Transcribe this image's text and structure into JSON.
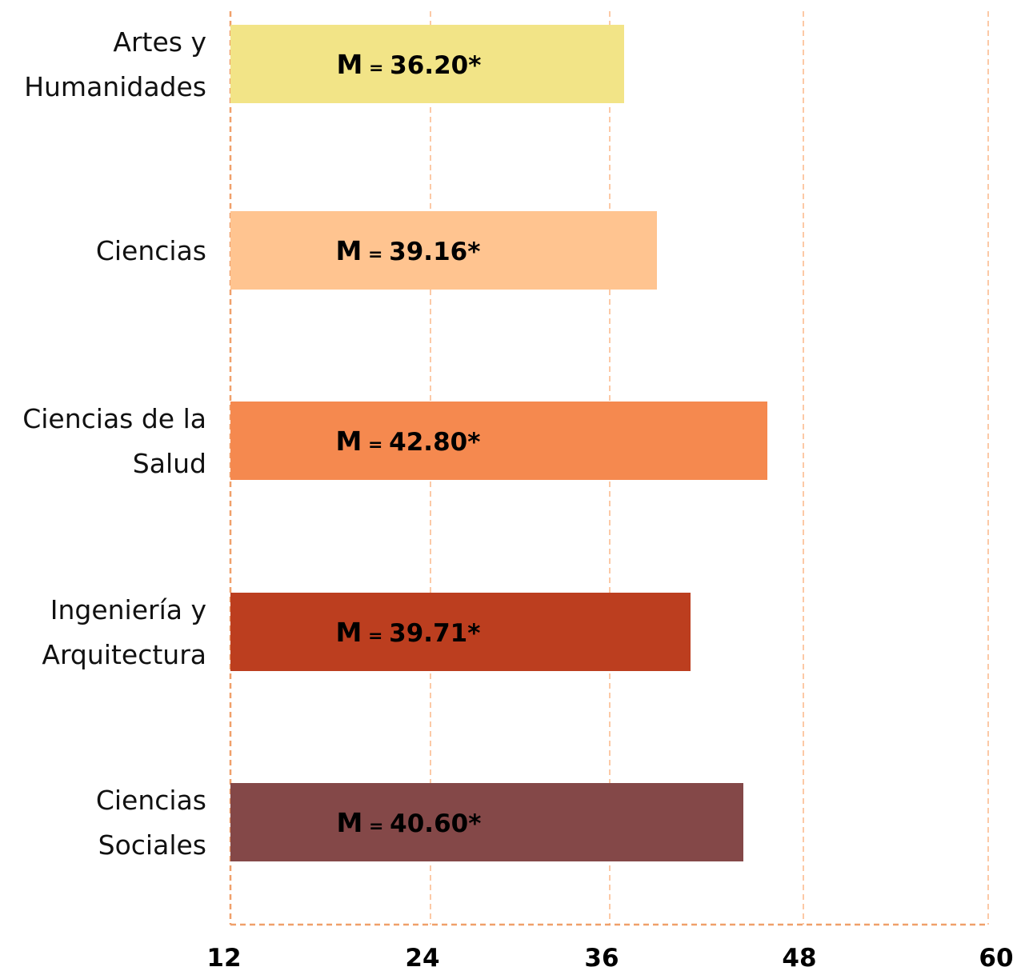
{
  "chart_data": {
    "type": "bar",
    "orientation": "horizontal",
    "categories": [
      [
        "Artes y",
        "Humanidades"
      ],
      [
        "Ciencias"
      ],
      [
        "Ciencias de la",
        "Salud"
      ],
      [
        "Ingeniería y",
        "Arquitectura"
      ],
      [
        "Ciencias",
        "Sociales"
      ]
    ],
    "values": [
      36.2,
      39.16,
      42.8,
      39.71,
      40.6
    ],
    "data_labels": [
      {
        "prefix": "M",
        "eq": " = ",
        "value": "36.20*"
      },
      {
        "prefix": "M",
        "eq": " = ",
        "value": "39.16*"
      },
      {
        "prefix": "M",
        "eq": " = ",
        "value": "42.80*"
      },
      {
        "prefix": "M",
        "eq": " = ",
        "value": "39.71*"
      },
      {
        "prefix": "M",
        "eq": " = ",
        "value": "40.60*"
      }
    ],
    "colors": [
      "#f2e487",
      "#ffc490",
      "#f5894f",
      "#bc3e1f",
      "#844848"
    ],
    "axis_color": "#f0a06a",
    "grid_color": "#fcc9a6",
    "xticks": [
      "12",
      "24",
      "36",
      "48",
      "60"
    ],
    "xlim": [
      12,
      60
    ],
    "grid": true,
    "gridline_style": "dashed",
    "title": "",
    "xlabel": "",
    "ylabel": ""
  }
}
